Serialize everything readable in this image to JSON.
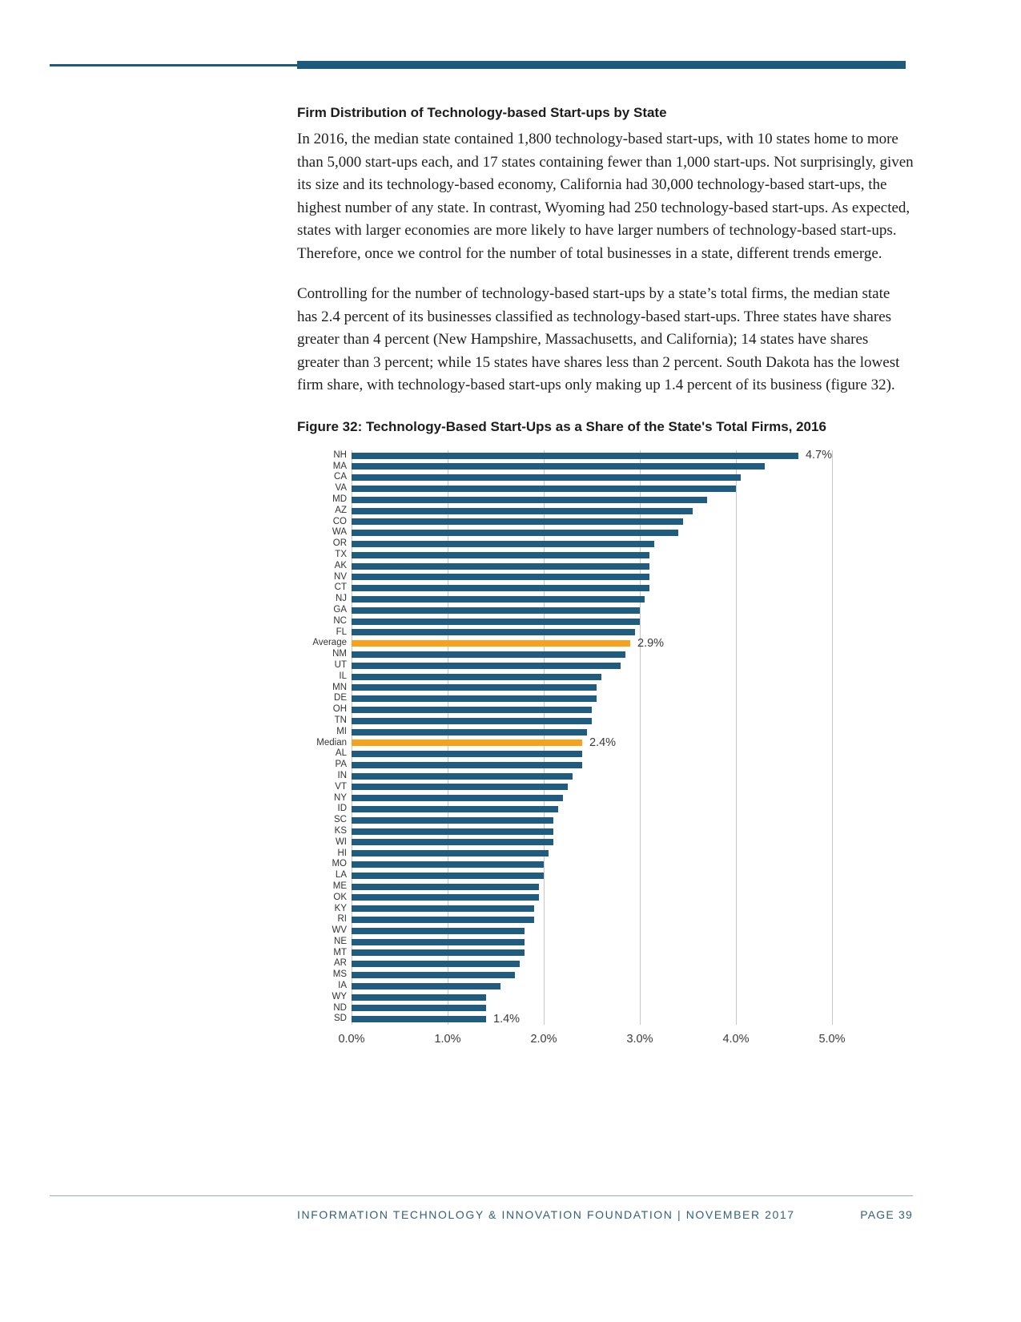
{
  "page": {
    "section_heading": "Firm Distribution of Technology-based Start-ups by State",
    "paragraphs": [
      "In 2016, the median state contained 1,800 technology-based start-ups, with 10 states home to more than 5,000 start-ups each, and 17 states containing fewer than 1,000 start-ups. Not surprisingly, given its size and its technology-based economy, California had 30,000 technology-based start-ups, the highest number of any state. In contrast, Wyoming had 250 technology-based start-ups. As expected, states with larger economies are more likely to have larger numbers of technology-based start-ups. Therefore, once we control for the number of total businesses in a state, different trends emerge.",
      "Controlling for the number of technology-based start-ups by a state’s total firms, the median state has 2.4 percent of its businesses classified as technology-based start-ups. Three states have shares greater than 4 percent (New Hampshire, Massachusetts, and California); 14 states have shares greater than 3 percent; while 15 states have shares less than 2 percent. South Dakota has the lowest firm share, with technology-based start-ups only making up 1.4 percent of its business (figure 32)."
    ],
    "figure_caption": "Figure 32: Technology-Based Start-Ups as a Share of the State's Total Firms, 2016"
  },
  "footer": {
    "left": "INFORMATION TECHNOLOGY & INNOVATION FOUNDATION | NOVEMBER 2017",
    "page": "PAGE 39"
  },
  "colors": {
    "bar": "#1F5C7F",
    "highlight": "#F7A11C",
    "rule": "#1E5A7C",
    "gridline": "#C6C6C6",
    "footer_rule": "#8FB0C2",
    "footer_text": "#33617A",
    "text": "#1F1F1F"
  },
  "chart_data": {
    "type": "bar",
    "orientation": "horizontal",
    "title": "Figure 32: Technology-Based Start-Ups as a Share of the State's Total Firms, 2016",
    "xlabel": "",
    "ylabel": "",
    "xlim": [
      0,
      5
    ],
    "x_ticks": [
      "0.0%",
      "1.0%",
      "2.0%",
      "3.0%",
      "4.0%",
      "5.0%"
    ],
    "grid": "vertical",
    "legend": "none",
    "categories": [
      "NH",
      "MA",
      "CA",
      "VA",
      "MD",
      "AZ",
      "CO",
      "WA",
      "OR",
      "TX",
      "AK",
      "NV",
      "CT",
      "NJ",
      "GA",
      "NC",
      "FL",
      "Average",
      "NM",
      "UT",
      "IL",
      "MN",
      "DE",
      "OH",
      "TN",
      "MI",
      "Median",
      "AL",
      "PA",
      "IN",
      "VT",
      "NY",
      "ID",
      "SC",
      "KS",
      "WI",
      "HI",
      "MO",
      "LA",
      "ME",
      "OK",
      "KY",
      "RI",
      "WV",
      "NE",
      "MT",
      "AR",
      "MS",
      "IA",
      "WY",
      "ND",
      "SD"
    ],
    "values": [
      4.7,
      4.3,
      4.05,
      4.0,
      3.7,
      3.55,
      3.45,
      3.4,
      3.15,
      3.1,
      3.1,
      3.1,
      3.1,
      3.05,
      3.0,
      3.0,
      2.95,
      2.9,
      2.85,
      2.8,
      2.6,
      2.55,
      2.55,
      2.5,
      2.5,
      2.45,
      2.4,
      2.4,
      2.4,
      2.3,
      2.25,
      2.2,
      2.15,
      2.1,
      2.1,
      2.1,
      2.05,
      2.0,
      2.0,
      1.95,
      1.95,
      1.9,
      1.9,
      1.8,
      1.8,
      1.8,
      1.75,
      1.7,
      1.55,
      1.4,
      1.4,
      1.4
    ],
    "highlight_categories": [
      "Average",
      "Median"
    ],
    "data_labels": {
      "NH": "4.7%",
      "Average": "2.9%",
      "Median": "2.4%",
      "SD": "1.4%"
    }
  }
}
